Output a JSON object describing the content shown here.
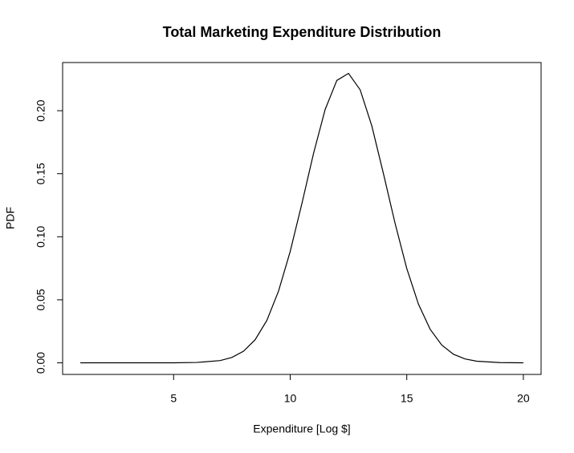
{
  "chart_data": {
    "type": "line",
    "title": "Total Marketing Expenditure Distribution",
    "x_label": "Expenditure [Log $]",
    "y_label": "PDF",
    "x": [
      1,
      2,
      3,
      4,
      5,
      6,
      7,
      7.5,
      8,
      8.5,
      9,
      9.5,
      10,
      10.5,
      11,
      11.5,
      12,
      12.5,
      13,
      13.5,
      14,
      14.5,
      15,
      15.5,
      16,
      16.5,
      17,
      17.5,
      18,
      19,
      20
    ],
    "series": [
      {
        "color": "#000000",
        "values": [
          0,
          0,
          0,
          0,
          0,
          0.0003,
          0.0018,
          0.0043,
          0.0092,
          0.0184,
          0.0337,
          0.0569,
          0.0883,
          0.1262,
          0.166,
          0.201,
          0.224,
          0.2296,
          0.2166,
          0.188,
          0.15,
          0.1105,
          0.0748,
          0.0466,
          0.0267,
          0.0141,
          0.0068,
          0.0031,
          0.0013,
          0.0002,
          0
        ]
      }
    ],
    "xlim": [
      0.24,
      20.76
    ],
    "ylim": [
      -0.0092,
      0.2382
    ],
    "xticks": [
      5,
      10,
      15,
      20
    ],
    "yticks": [
      {
        "value": 0,
        "label": "0.00"
      },
      {
        "value": 0.05,
        "label": "0.05"
      },
      {
        "value": 0.1,
        "label": "0.10"
      },
      {
        "value": 0.15,
        "label": "0.15"
      },
      {
        "value": 0.2,
        "label": "0.20"
      }
    ]
  }
}
